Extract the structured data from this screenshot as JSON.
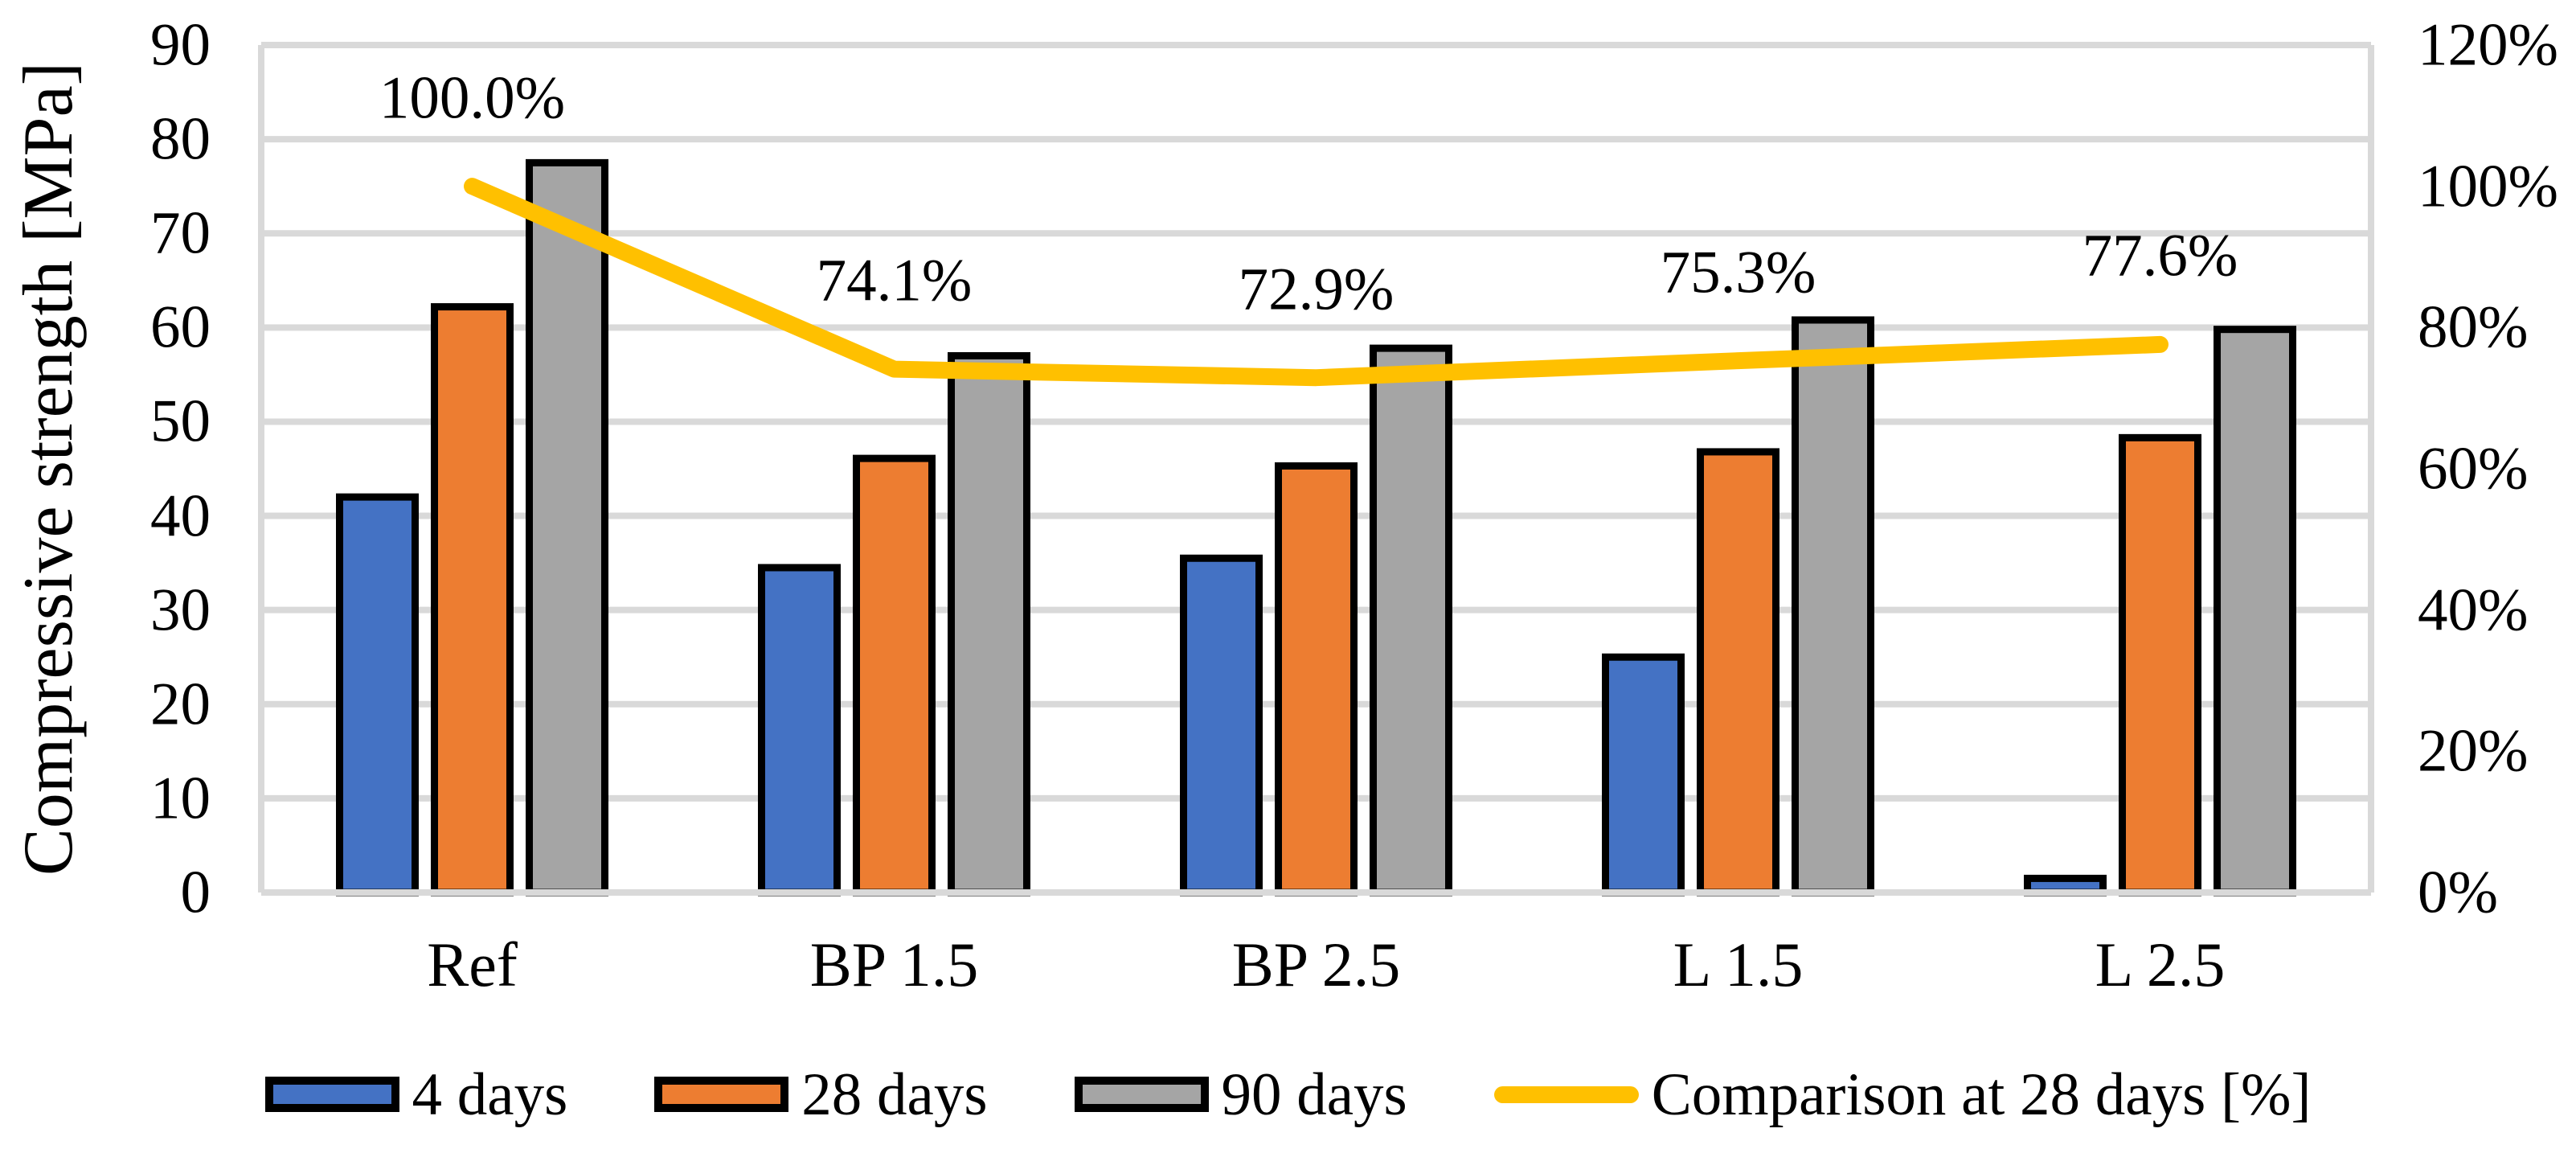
{
  "chart_data": {
    "type": "bar+line",
    "title": "",
    "categories": [
      "Ref",
      "BP 1.5",
      "BP 2.5",
      "L 1.5",
      "L 2.5"
    ],
    "series": [
      {
        "name": "4 days",
        "type": "bar",
        "axis": "primary",
        "color": "#4472C4",
        "values": [
          42.0,
          34.5,
          35.5,
          25.0,
          1.5
        ]
      },
      {
        "name": "28 days",
        "type": "bar",
        "axis": "primary",
        "color": "#ED7D31",
        "values": [
          62.2,
          46.1,
          45.3,
          46.8,
          48.3
        ]
      },
      {
        "name": "90 days",
        "type": "bar",
        "axis": "primary",
        "color": "#A5A5A5",
        "values": [
          77.5,
          57.0,
          57.8,
          60.8,
          59.8
        ]
      }
    ],
    "line_series": {
      "name": "Comparison at 28 days [%]",
      "type": "line",
      "axis": "secondary",
      "color": "#FFC000",
      "values": [
        100.0,
        74.1,
        72.9,
        75.3,
        77.6
      ],
      "point_labels": [
        "100.0%",
        "74.1%",
        "72.9%",
        "75.3%",
        "77.6%"
      ]
    },
    "left_axis": {
      "title": "Compressive strength [MPa]",
      "min": 0,
      "max": 90,
      "step": 10,
      "tick_labels": [
        "0",
        "10",
        "20",
        "30",
        "40",
        "50",
        "60",
        "70",
        "80",
        "90"
      ]
    },
    "right_axis": {
      "title": "",
      "min": 0,
      "max": 120,
      "step": 20,
      "tick_labels": [
        "0%",
        "20%",
        "40%",
        "60%",
        "80%",
        "100%",
        "120%"
      ]
    },
    "grid": true,
    "legend_position": "bottom",
    "colors": {
      "grid": "#D9D9D9",
      "bar_border": "#000000",
      "text": "#000000",
      "background": "#FFFFFF"
    }
  }
}
